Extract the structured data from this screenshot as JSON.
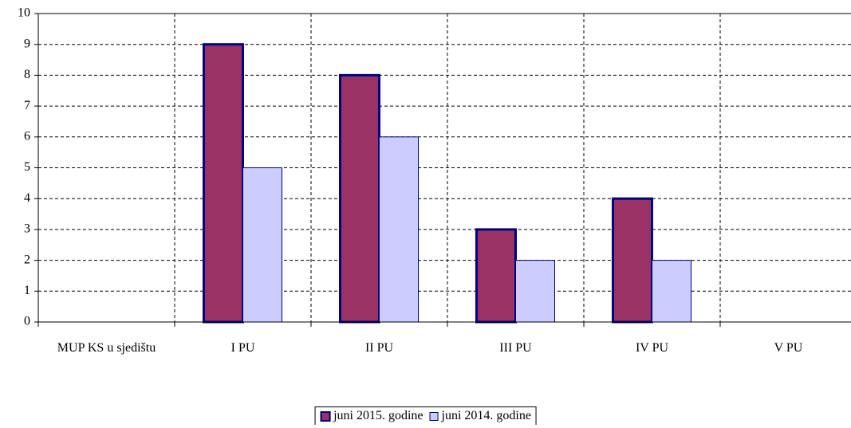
{
  "chart_data": {
    "type": "bar",
    "categories": [
      "MUP KS u sjedištu",
      "I PU",
      "II PU",
      "III PU",
      "IV PU",
      "V PU"
    ],
    "series": [
      {
        "name": "juni 2015. godine",
        "color": "#993366",
        "values": [
          0,
          9,
          8,
          3,
          4,
          0
        ]
      },
      {
        "name": "juni 2014. godine",
        "color": "#ccccff",
        "values": [
          0,
          5,
          6,
          2,
          2,
          0
        ]
      }
    ],
    "ylim": [
      0,
      10
    ],
    "yticks": [
      0,
      1,
      2,
      3,
      4,
      5,
      6,
      7,
      8,
      9,
      10
    ],
    "grid": true,
    "legend": "bottom"
  }
}
